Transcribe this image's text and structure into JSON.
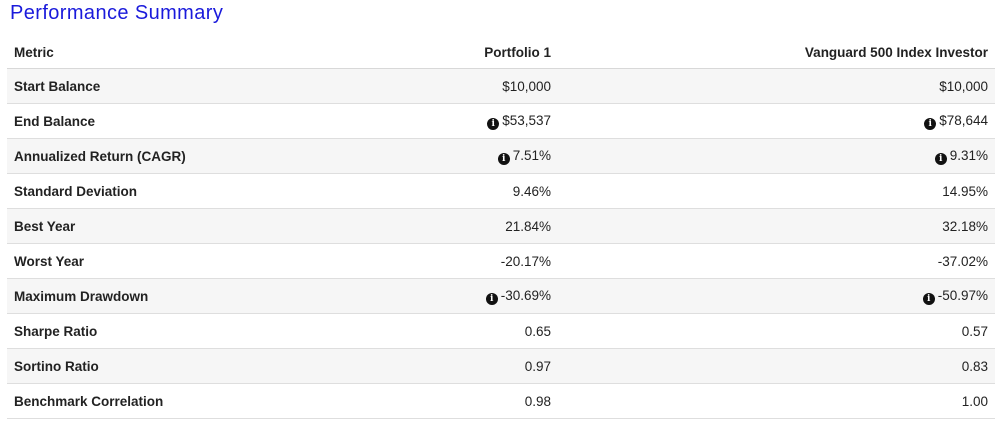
{
  "title": "Performance Summary",
  "columns": [
    "Metric",
    "Portfolio 1",
    "Vanguard 500 Index Investor"
  ],
  "icons": {
    "info": "info-circle-icon"
  },
  "rows": [
    {
      "metric": "Start Balance",
      "portfolio_1": "$10,000",
      "portfolio_1_info": false,
      "vanguard": "$10,000",
      "vanguard_info": false
    },
    {
      "metric": "End Balance",
      "portfolio_1": "$53,537",
      "portfolio_1_info": true,
      "vanguard": "$78,644",
      "vanguard_info": true
    },
    {
      "metric": "Annualized Return (CAGR)",
      "portfolio_1": "7.51%",
      "portfolio_1_info": true,
      "vanguard": "9.31%",
      "vanguard_info": true
    },
    {
      "metric": "Standard Deviation",
      "portfolio_1": "9.46%",
      "portfolio_1_info": false,
      "vanguard": "14.95%",
      "vanguard_info": false
    },
    {
      "metric": "Best Year",
      "portfolio_1": "21.84%",
      "portfolio_1_info": false,
      "vanguard": "32.18%",
      "vanguard_info": false
    },
    {
      "metric": "Worst Year",
      "portfolio_1": "-20.17%",
      "portfolio_1_info": false,
      "vanguard": "-37.02%",
      "vanguard_info": false
    },
    {
      "metric": "Maximum Drawdown",
      "portfolio_1": "-30.69%",
      "portfolio_1_info": true,
      "vanguard": "-50.97%",
      "vanguard_info": true
    },
    {
      "metric": "Sharpe Ratio",
      "portfolio_1": "0.65",
      "portfolio_1_info": false,
      "vanguard": "0.57",
      "vanguard_info": false
    },
    {
      "metric": "Sortino Ratio",
      "portfolio_1": "0.97",
      "portfolio_1_info": false,
      "vanguard": "0.83",
      "vanguard_info": false
    },
    {
      "metric": "Benchmark Correlation",
      "portfolio_1": "0.98",
      "portfolio_1_info": false,
      "vanguard": "1.00",
      "vanguard_info": false
    }
  ],
  "colors": {
    "title": "#1a1adb",
    "row_stripe": "#f6f6f6",
    "border": "#dedede"
  }
}
